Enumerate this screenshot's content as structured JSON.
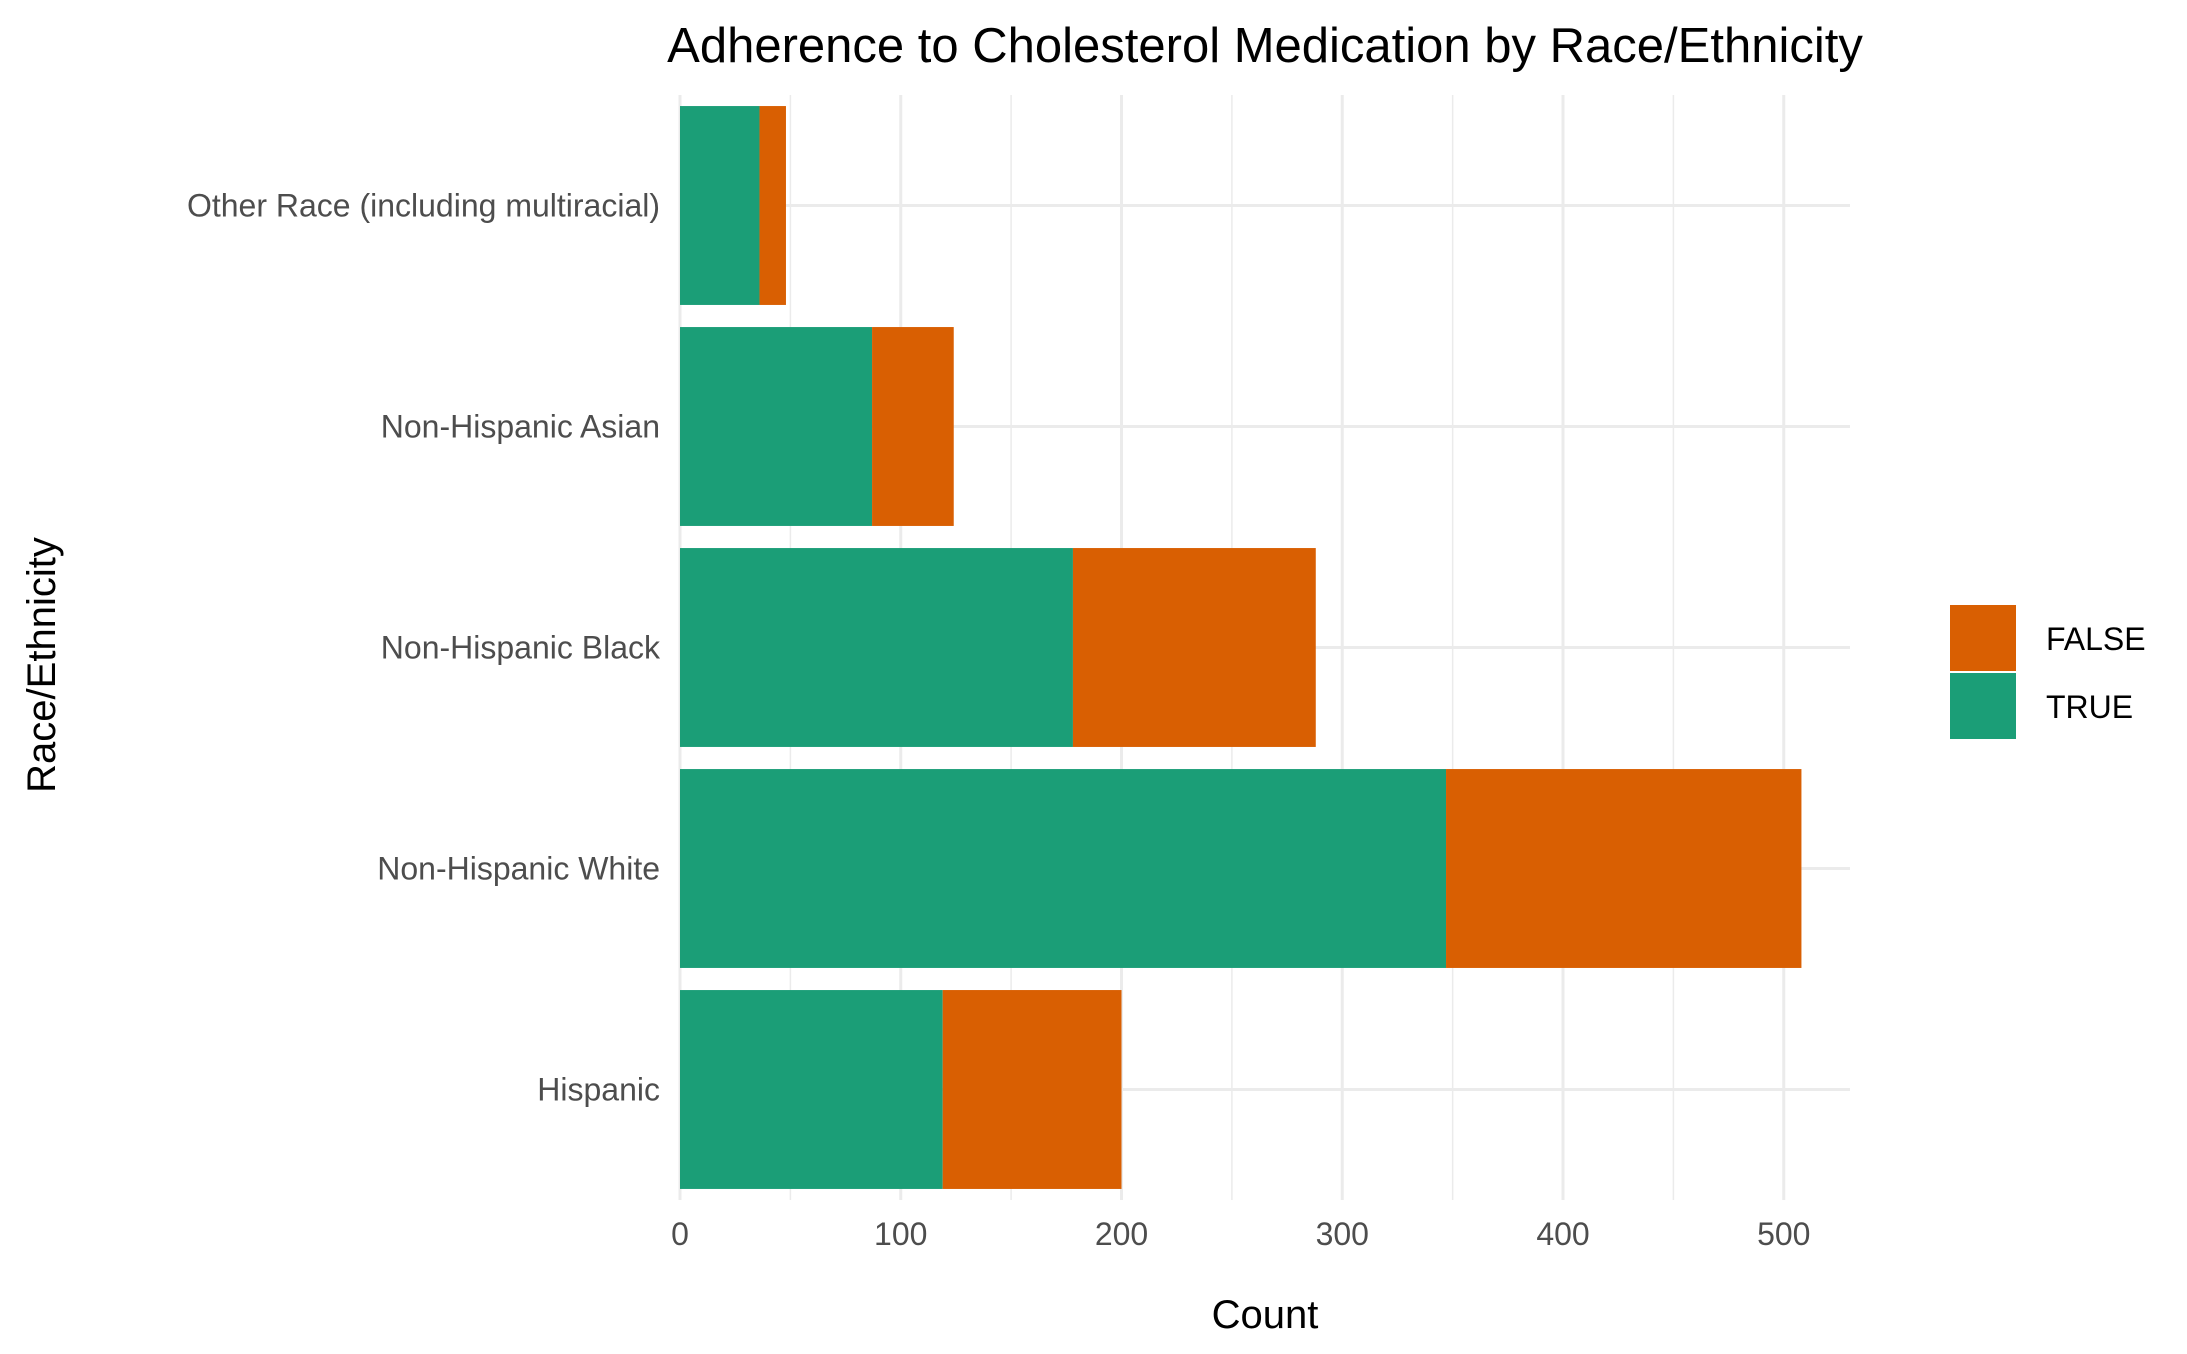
{
  "chart_data": {
    "type": "bar",
    "orientation": "horizontal",
    "stacked": true,
    "title": "Adherence to Cholesterol Medication by Race/Ethnicity",
    "xlabel": "Count",
    "ylabel": "Race/Ethnicity",
    "categories": [
      "Hispanic",
      "Non-Hispanic White",
      "Non-Hispanic Black",
      "Non-Hispanic Asian",
      "Other Race (including multiracial)"
    ],
    "series": [
      {
        "name": "TRUE",
        "color": "#1b9e77",
        "values": [
          119,
          347,
          178,
          87,
          36
        ]
      },
      {
        "name": "FALSE",
        "color": "#d95f02",
        "values": [
          81,
          161,
          110,
          37,
          12
        ]
      }
    ],
    "xlim": [
      0,
      530
    ],
    "xticks": [
      0,
      100,
      200,
      300,
      400,
      500
    ],
    "legend_order": [
      "FALSE",
      "TRUE"
    ],
    "legend_position": "right",
    "grid": true,
    "gridline_color": "#ebebeb"
  }
}
